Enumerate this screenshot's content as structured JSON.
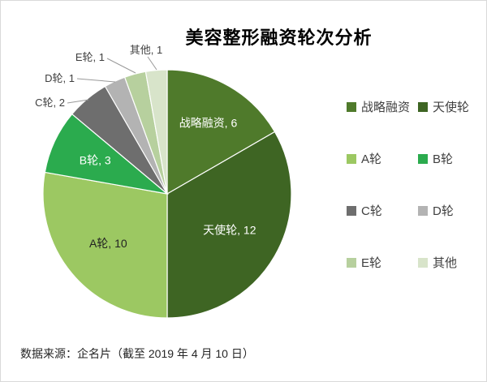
{
  "chart_data": {
    "type": "pie",
    "title": "美容整形融资轮次分析",
    "categories": [
      "战略融资",
      "天使轮",
      "A轮",
      "B轮",
      "C轮",
      "D轮",
      "E轮",
      "其他"
    ],
    "values": [
      6,
      12,
      10,
      3,
      2,
      1,
      1,
      1
    ],
    "total": 36,
    "colors": [
      "#4f7a2b",
      "#3e6523",
      "#9cc862",
      "#2bab4e",
      "#6e6e6e",
      "#b3b3b3",
      "#b7d09e",
      "#d8e4ca"
    ],
    "label_text_colors": [
      "#ffffff",
      "#ffffff",
      "#222222",
      "#ffffff",
      "#3f3f3f",
      "#3f3f3f",
      "#3f3f3f",
      "#3f3f3f"
    ],
    "data_label_format": "{category}, {value}",
    "start_angle_deg": 0,
    "direction": "clockwise",
    "legend_position": "right",
    "legend_columns": 2
  },
  "source_note": "数据来源：企名片（截至 2019 年 4 月 10 日）"
}
